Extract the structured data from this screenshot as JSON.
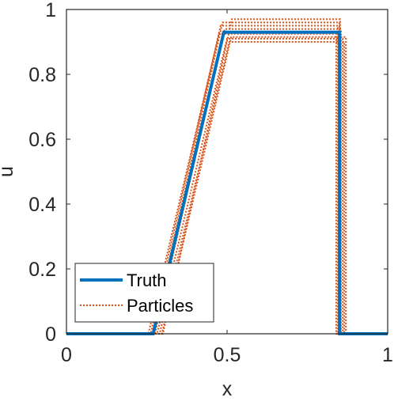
{
  "chart_data": {
    "type": "line",
    "title": "",
    "xlabel": "x",
    "ylabel": "u",
    "xlim": [
      0,
      1
    ],
    "ylim": [
      0,
      1
    ],
    "xticks": [
      0,
      0.5,
      1
    ],
    "xtick_labels": [
      "0",
      "0.5",
      "1"
    ],
    "yticks": [
      0,
      0.2,
      0.4,
      0.6,
      0.8,
      1
    ],
    "ytick_labels": [
      "0",
      "0.2",
      "0.4",
      "0.6",
      "0.8",
      "1"
    ],
    "grid": false,
    "legend_placement": "bottom-left",
    "legend": [
      "Truth",
      "Particles"
    ],
    "colors": {
      "truth": "#0072BD",
      "particles": "#D95319",
      "axes": "#262626"
    },
    "truth": {
      "name": "Truth",
      "x": [
        0,
        0.27,
        0.49,
        0.85,
        0.85,
        1
      ],
      "y": [
        0,
        0,
        0.93,
        0.93,
        0,
        0
      ]
    },
    "particles": {
      "name": "Particles",
      "series": [
        {
          "x": [
            0,
            0.255,
            0.475,
            0.84,
            0.84,
            1
          ],
          "y": [
            0,
            0,
            0.925,
            0.925,
            0,
            0
          ]
        },
        {
          "x": [
            0,
            0.262,
            0.48,
            0.845,
            0.845,
            1
          ],
          "y": [
            0,
            0,
            0.95,
            0.95,
            0,
            0
          ]
        },
        {
          "x": [
            0,
            0.268,
            0.486,
            0.85,
            0.85,
            1
          ],
          "y": [
            0,
            0,
            0.96,
            0.96,
            0,
            0
          ]
        },
        {
          "x": [
            0,
            0.275,
            0.493,
            0.855,
            0.855,
            1
          ],
          "y": [
            0,
            0,
            0.94,
            0.94,
            0,
            0
          ]
        },
        {
          "x": [
            0,
            0.282,
            0.5,
            0.86,
            0.86,
            1
          ],
          "y": [
            0,
            0,
            0.91,
            0.91,
            0,
            0
          ]
        },
        {
          "x": [
            0,
            0.29,
            0.507,
            0.865,
            0.865,
            1
          ],
          "y": [
            0,
            0,
            0.9,
            0.9,
            0,
            0
          ]
        },
        {
          "x": [
            0,
            0.297,
            0.513,
            0.87,
            0.87,
            1
          ],
          "y": [
            0,
            0,
            0.915,
            0.915,
            0,
            0
          ]
        },
        {
          "x": [
            0,
            0.3,
            0.515,
            0.852,
            0.852,
            1
          ],
          "y": [
            0,
            0,
            0.97,
            0.97,
            0,
            0
          ]
        }
      ]
    }
  }
}
